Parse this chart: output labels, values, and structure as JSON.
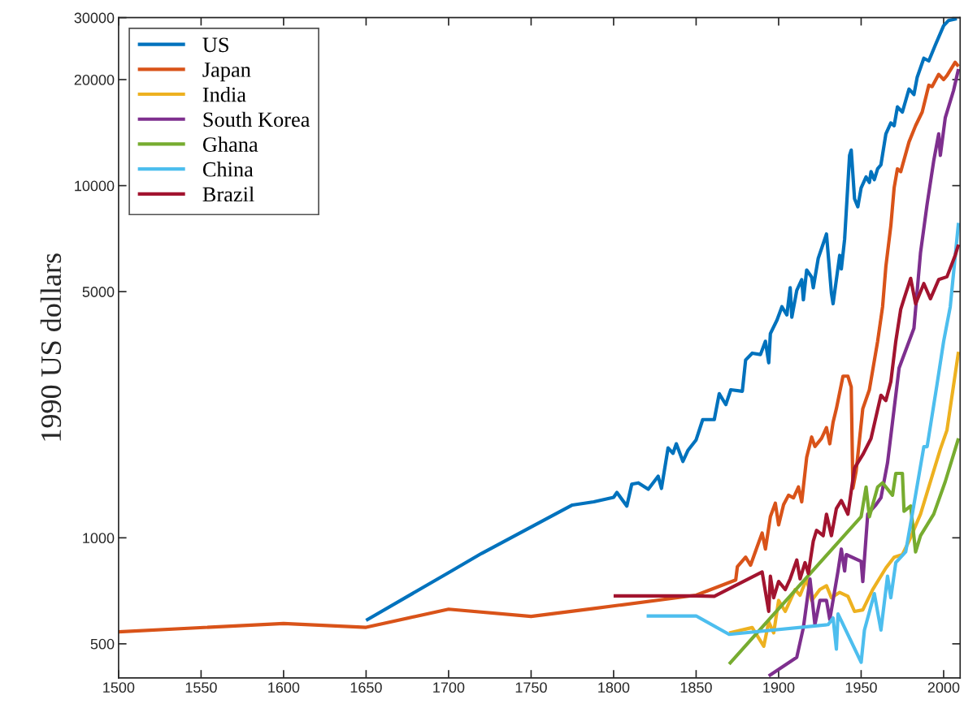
{
  "chart_data": {
    "type": "line",
    "ylabel": "1990 US dollars",
    "log": "y",
    "grid": false,
    "legend": "top left",
    "line_style": "solid",
    "marker": "none",
    "xlim": [
      1500,
      2010
    ],
    "xticks": [
      1500,
      1550,
      1600,
      1650,
      1700,
      1750,
      1800,
      1850,
      1900,
      1950,
      2000
    ],
    "ylim": [
      400,
      30000
    ],
    "yticks": [
      500,
      1000,
      5000,
      10000,
      20000,
      30000
    ],
    "series": [
      {
        "name": "US",
        "color": "#0072bd",
        "x": [
          1650,
          1700,
          1720,
          1775,
          1788,
          1800,
          1802,
          1808,
          1811,
          1815,
          1821,
          1827,
          1829,
          1833,
          1836,
          1838,
          1842,
          1845,
          1850,
          1854,
          1861,
          1864,
          1868,
          1871,
          1878,
          1880,
          1884,
          1889,
          1892,
          1894,
          1895,
          1899,
          1902,
          1905,
          1907,
          1908,
          1911,
          1914,
          1915,
          1917,
          1920,
          1921,
          1924,
          1929,
          1932,
          1933,
          1937,
          1938,
          1940,
          1943,
          1944,
          1946,
          1948,
          1950,
          1953,
          1955,
          1956,
          1958,
          1960,
          1962,
          1965,
          1968,
          1970,
          1972,
          1975,
          1979,
          1982,
          1984,
          1988,
          1991,
          1995,
          2000,
          2003,
          2008
        ],
        "values": [
          583,
          796,
          903,
          1239,
          1265,
          1303,
          1345,
          1231,
          1420,
          1432,
          1374,
          1496,
          1381,
          1800,
          1738,
          1849,
          1648,
          1770,
          1897,
          2166,
          2166,
          2565,
          2389,
          2633,
          2607,
          3198,
          3344,
          3314,
          3614,
          3140,
          3800,
          4150,
          4530,
          4295,
          5130,
          4230,
          5040,
          5410,
          4740,
          5760,
          5500,
          5130,
          6220,
          7290,
          4950,
          4620,
          6340,
          5800,
          7050,
          12190,
          12620,
          9180,
          8710,
          9860,
          10580,
          10210,
          10960,
          10400,
          11160,
          11460,
          14030,
          15060,
          14800,
          16730,
          16180,
          18800,
          18140,
          20330,
          23000,
          22600,
          25100,
          28450,
          29450,
          29800
        ]
      },
      {
        "name": "Japan",
        "color": "#d95319",
        "x": [
          1500,
          1600,
          1650,
          1700,
          1750,
          1788,
          1850,
          1874,
          1875,
          1880,
          1883,
          1887,
          1890,
          1892,
          1895,
          1898,
          1900,
          1903,
          1906,
          1909,
          1912,
          1914,
          1917,
          1920,
          1922,
          1926,
          1929,
          1931,
          1933,
          1935,
          1939,
          1942,
          1944,
          1945,
          1947,
          1951,
          1955,
          1960,
          1963,
          1965,
          1968,
          1970,
          1972,
          1974,
          1979,
          1983,
          1987,
          1991,
          1993,
          1997,
          2000,
          2002,
          2007,
          2009
        ],
        "values": [
          541,
          571,
          557,
          627,
          598,
          630,
          687,
          759,
          828,
          881,
          836,
          944,
          1032,
          929,
          1148,
          1254,
          1088,
          1242,
          1321,
          1299,
          1394,
          1265,
          1693,
          1933,
          1817,
          1915,
          2056,
          1849,
          2129,
          2326,
          2877,
          2877,
          2680,
          1382,
          1550,
          2326,
          2633,
          3614,
          4530,
          5900,
          7690,
          9860,
          11160,
          10960,
          13300,
          14800,
          16180,
          19280,
          19100,
          20700,
          20000,
          20530,
          22400,
          21800
        ]
      },
      {
        "name": "India",
        "color": "#edb120",
        "x": [
          1870,
          1884,
          1891,
          1894,
          1897,
          1900,
          1904,
          1910,
          1913,
          1917,
          1920,
          1925,
          1929,
          1932,
          1937,
          1942,
          1946,
          1951,
          1957,
          1961,
          1965,
          1970,
          1975,
          1979,
          1986,
          1993,
          1998,
          2002,
          2009
        ],
        "values": [
          537,
          556,
          492,
          577,
          537,
          664,
          618,
          713,
          687,
          765,
          664,
          713,
          731,
          676,
          700,
          682,
          618,
          624,
          713,
          765,
          821,
          881,
          896,
          979,
          1168,
          1496,
          1786,
          2020,
          3374
        ]
      },
      {
        "name": "South Korea",
        "color": "#7e2f8e",
        "x": [
          1894,
          1911,
          1915,
          1919,
          1922,
          1925,
          1929,
          1931,
          1936,
          1938,
          1940,
          1941,
          1950,
          1951,
          1954,
          1959,
          1962,
          1966,
          1969,
          1973,
          1982,
          1986,
          1990,
          1994,
          1997,
          1998,
          2001,
          2006,
          2009
        ],
        "values": [
          405,
          458,
          556,
          764,
          567,
          664,
          664,
          586,
          805,
          929,
          805,
          896,
          857,
          751,
          1168,
          1242,
          1299,
          1633,
          2129,
          3034,
          3935,
          6460,
          8870,
          11770,
          14030,
          12190,
          15600,
          18620,
          21430
        ]
      },
      {
        "name": "Ghana",
        "color": "#77ac30",
        "x": [
          1870,
          1950,
          1953,
          1955,
          1960,
          1963,
          1969,
          1971,
          1975,
          1976,
          1980,
          1983,
          1986,
          1994,
          2001,
          2009
        ],
        "values": [
          438,
          1148,
          1394,
          1148,
          1394,
          1432,
          1321,
          1524,
          1524,
          1189,
          1231,
          912,
          1014,
          1168,
          1445,
          1915
        ]
      },
      {
        "name": "China",
        "color": "#4dbeee",
        "x": [
          1820,
          1850,
          1870,
          1930,
          1933,
          1935,
          1936,
          1950,
          1952,
          1958,
          1962,
          1966,
          1968,
          1971,
          1977,
          1981,
          1988,
          1990,
          1996,
          2000,
          2004,
          2009
        ],
        "values": [
          600,
          600,
          532,
          567,
          592,
          483,
          608,
          443,
          547,
          694,
          547,
          778,
          676,
          850,
          912,
          1168,
          1815,
          1815,
          2729,
          3614,
          4530,
          7840
        ]
      },
      {
        "name": "Brazil",
        "color": "#a2142f",
        "x": [
          1800,
          1850,
          1861,
          1890,
          1894,
          1895,
          1897,
          1900,
          1904,
          1907,
          1911,
          1913,
          1916,
          1918,
          1921,
          1923,
          1927,
          1929,
          1932,
          1935,
          1938,
          1942,
          1946,
          1951,
          1956,
          1962,
          1965,
          1968,
          1971,
          1974,
          1976,
          1980,
          1983,
          1988,
          1992,
          1997,
          2002,
          2007,
          2009
        ],
        "values": [
          684,
          684,
          682,
          800,
          618,
          778,
          676,
          752,
          713,
          765,
          865,
          765,
          850,
          792,
          979,
          1050,
          1014,
          1167,
          1014,
          1210,
          1276,
          1167,
          1578,
          1722,
          1915,
          2540,
          2453,
          2775,
          3614,
          4455,
          4775,
          5455,
          4617,
          5270,
          4775,
          5410,
          5510,
          6340,
          6800
        ]
      }
    ]
  }
}
